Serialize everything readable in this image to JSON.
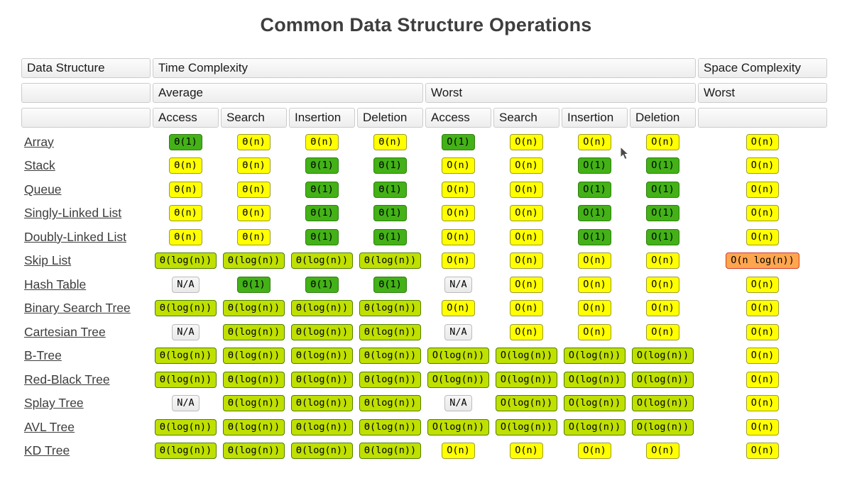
{
  "title": "Common Data Structure Operations",
  "header": {
    "data_structure": "Data Structure",
    "time_complexity": "Time Complexity",
    "space_complexity": "Space Complexity",
    "average": "Average",
    "worst": "Worst",
    "space_worst": "Worst",
    "ops": [
      "Access",
      "Search",
      "Insertion",
      "Deletion",
      "Access",
      "Search",
      "Insertion",
      "Deletion"
    ]
  },
  "colors": {
    "excellent_bg": "#43b117",
    "excellent_border": "#2f7e10",
    "good_bg": "#bfe000",
    "good_border": "#4e7e00",
    "fair_bg": "#ffff00",
    "fair_border": "#9c9c30",
    "bad_bg": "#ffa64d",
    "bad_border": "#d03a2f",
    "na_bg_top": "#f7f7f7",
    "na_bg_bottom": "#e9e9e9",
    "na_border": "#bcbcbc"
  },
  "rows": [
    {
      "name": "Array",
      "cells": [
        {
          "t": "Θ(1)",
          "c": "excellent"
        },
        {
          "t": "Θ(n)",
          "c": "fair"
        },
        {
          "t": "Θ(n)",
          "c": "fair"
        },
        {
          "t": "Θ(n)",
          "c": "fair"
        },
        {
          "t": "O(1)",
          "c": "excellent"
        },
        {
          "t": "O(n)",
          "c": "fair"
        },
        {
          "t": "O(n)",
          "c": "fair"
        },
        {
          "t": "O(n)",
          "c": "fair"
        },
        {
          "t": "O(n)",
          "c": "fair"
        }
      ]
    },
    {
      "name": "Stack",
      "cells": [
        {
          "t": "Θ(n)",
          "c": "fair"
        },
        {
          "t": "Θ(n)",
          "c": "fair"
        },
        {
          "t": "Θ(1)",
          "c": "excellent"
        },
        {
          "t": "Θ(1)",
          "c": "excellent"
        },
        {
          "t": "O(n)",
          "c": "fair"
        },
        {
          "t": "O(n)",
          "c": "fair"
        },
        {
          "t": "O(1)",
          "c": "excellent"
        },
        {
          "t": "O(1)",
          "c": "excellent"
        },
        {
          "t": "O(n)",
          "c": "fair"
        }
      ]
    },
    {
      "name": "Queue",
      "cells": [
        {
          "t": "Θ(n)",
          "c": "fair"
        },
        {
          "t": "Θ(n)",
          "c": "fair"
        },
        {
          "t": "Θ(1)",
          "c": "excellent"
        },
        {
          "t": "Θ(1)",
          "c": "excellent"
        },
        {
          "t": "O(n)",
          "c": "fair"
        },
        {
          "t": "O(n)",
          "c": "fair"
        },
        {
          "t": "O(1)",
          "c": "excellent"
        },
        {
          "t": "O(1)",
          "c": "excellent"
        },
        {
          "t": "O(n)",
          "c": "fair"
        }
      ]
    },
    {
      "name": "Singly-Linked List",
      "cells": [
        {
          "t": "Θ(n)",
          "c": "fair"
        },
        {
          "t": "Θ(n)",
          "c": "fair"
        },
        {
          "t": "Θ(1)",
          "c": "excellent"
        },
        {
          "t": "Θ(1)",
          "c": "excellent"
        },
        {
          "t": "O(n)",
          "c": "fair"
        },
        {
          "t": "O(n)",
          "c": "fair"
        },
        {
          "t": "O(1)",
          "c": "excellent"
        },
        {
          "t": "O(1)",
          "c": "excellent"
        },
        {
          "t": "O(n)",
          "c": "fair"
        }
      ]
    },
    {
      "name": "Doubly-Linked List",
      "cells": [
        {
          "t": "Θ(n)",
          "c": "fair"
        },
        {
          "t": "Θ(n)",
          "c": "fair"
        },
        {
          "t": "Θ(1)",
          "c": "excellent"
        },
        {
          "t": "Θ(1)",
          "c": "excellent"
        },
        {
          "t": "O(n)",
          "c": "fair"
        },
        {
          "t": "O(n)",
          "c": "fair"
        },
        {
          "t": "O(1)",
          "c": "excellent"
        },
        {
          "t": "O(1)",
          "c": "excellent"
        },
        {
          "t": "O(n)",
          "c": "fair"
        }
      ]
    },
    {
      "name": "Skip List",
      "cells": [
        {
          "t": "Θ(log(n))",
          "c": "good"
        },
        {
          "t": "Θ(log(n))",
          "c": "good"
        },
        {
          "t": "Θ(log(n))",
          "c": "good"
        },
        {
          "t": "Θ(log(n))",
          "c": "good"
        },
        {
          "t": "O(n)",
          "c": "fair"
        },
        {
          "t": "O(n)",
          "c": "fair"
        },
        {
          "t": "O(n)",
          "c": "fair"
        },
        {
          "t": "O(n)",
          "c": "fair"
        },
        {
          "t": "O(n log(n))",
          "c": "bad"
        }
      ]
    },
    {
      "name": "Hash Table",
      "cells": [
        {
          "t": "N/A",
          "c": "na"
        },
        {
          "t": "Θ(1)",
          "c": "excellent"
        },
        {
          "t": "Θ(1)",
          "c": "excellent"
        },
        {
          "t": "Θ(1)",
          "c": "excellent"
        },
        {
          "t": "N/A",
          "c": "na"
        },
        {
          "t": "O(n)",
          "c": "fair"
        },
        {
          "t": "O(n)",
          "c": "fair"
        },
        {
          "t": "O(n)",
          "c": "fair"
        },
        {
          "t": "O(n)",
          "c": "fair"
        }
      ]
    },
    {
      "name": "Binary Search Tree",
      "cells": [
        {
          "t": "Θ(log(n))",
          "c": "good"
        },
        {
          "t": "Θ(log(n))",
          "c": "good"
        },
        {
          "t": "Θ(log(n))",
          "c": "good"
        },
        {
          "t": "Θ(log(n))",
          "c": "good"
        },
        {
          "t": "O(n)",
          "c": "fair"
        },
        {
          "t": "O(n)",
          "c": "fair"
        },
        {
          "t": "O(n)",
          "c": "fair"
        },
        {
          "t": "O(n)",
          "c": "fair"
        },
        {
          "t": "O(n)",
          "c": "fair"
        }
      ]
    },
    {
      "name": "Cartesian Tree",
      "cells": [
        {
          "t": "N/A",
          "c": "na"
        },
        {
          "t": "Θ(log(n))",
          "c": "good"
        },
        {
          "t": "Θ(log(n))",
          "c": "good"
        },
        {
          "t": "Θ(log(n))",
          "c": "good"
        },
        {
          "t": "N/A",
          "c": "na"
        },
        {
          "t": "O(n)",
          "c": "fair"
        },
        {
          "t": "O(n)",
          "c": "fair"
        },
        {
          "t": "O(n)",
          "c": "fair"
        },
        {
          "t": "O(n)",
          "c": "fair"
        }
      ]
    },
    {
      "name": "B-Tree",
      "cells": [
        {
          "t": "Θ(log(n))",
          "c": "good"
        },
        {
          "t": "Θ(log(n))",
          "c": "good"
        },
        {
          "t": "Θ(log(n))",
          "c": "good"
        },
        {
          "t": "Θ(log(n))",
          "c": "good"
        },
        {
          "t": "O(log(n))",
          "c": "good"
        },
        {
          "t": "O(log(n))",
          "c": "good"
        },
        {
          "t": "O(log(n))",
          "c": "good"
        },
        {
          "t": "O(log(n))",
          "c": "good"
        },
        {
          "t": "O(n)",
          "c": "fair"
        }
      ]
    },
    {
      "name": "Red-Black Tree",
      "cells": [
        {
          "t": "Θ(log(n))",
          "c": "good"
        },
        {
          "t": "Θ(log(n))",
          "c": "good"
        },
        {
          "t": "Θ(log(n))",
          "c": "good"
        },
        {
          "t": "Θ(log(n))",
          "c": "good"
        },
        {
          "t": "O(log(n))",
          "c": "good"
        },
        {
          "t": "O(log(n))",
          "c": "good"
        },
        {
          "t": "O(log(n))",
          "c": "good"
        },
        {
          "t": "O(log(n))",
          "c": "good"
        },
        {
          "t": "O(n)",
          "c": "fair"
        }
      ]
    },
    {
      "name": "Splay Tree",
      "cells": [
        {
          "t": "N/A",
          "c": "na"
        },
        {
          "t": "Θ(log(n))",
          "c": "good"
        },
        {
          "t": "Θ(log(n))",
          "c": "good"
        },
        {
          "t": "Θ(log(n))",
          "c": "good"
        },
        {
          "t": "N/A",
          "c": "na"
        },
        {
          "t": "O(log(n))",
          "c": "good"
        },
        {
          "t": "O(log(n))",
          "c": "good"
        },
        {
          "t": "O(log(n))",
          "c": "good"
        },
        {
          "t": "O(n)",
          "c": "fair"
        }
      ]
    },
    {
      "name": "AVL Tree",
      "cells": [
        {
          "t": "Θ(log(n))",
          "c": "good"
        },
        {
          "t": "Θ(log(n))",
          "c": "good"
        },
        {
          "t": "Θ(log(n))",
          "c": "good"
        },
        {
          "t": "Θ(log(n))",
          "c": "good"
        },
        {
          "t": "O(log(n))",
          "c": "good"
        },
        {
          "t": "O(log(n))",
          "c": "good"
        },
        {
          "t": "O(log(n))",
          "c": "good"
        },
        {
          "t": "O(log(n))",
          "c": "good"
        },
        {
          "t": "O(n)",
          "c": "fair"
        }
      ]
    },
    {
      "name": "KD Tree",
      "cells": [
        {
          "t": "Θ(log(n))",
          "c": "good"
        },
        {
          "t": "Θ(log(n))",
          "c": "good"
        },
        {
          "t": "Θ(log(n))",
          "c": "good"
        },
        {
          "t": "Θ(log(n))",
          "c": "good"
        },
        {
          "t": "O(n)",
          "c": "fair"
        },
        {
          "t": "O(n)",
          "c": "fair"
        },
        {
          "t": "O(n)",
          "c": "fair"
        },
        {
          "t": "O(n)",
          "c": "fair"
        },
        {
          "t": "O(n)",
          "c": "fair"
        }
      ]
    }
  ]
}
